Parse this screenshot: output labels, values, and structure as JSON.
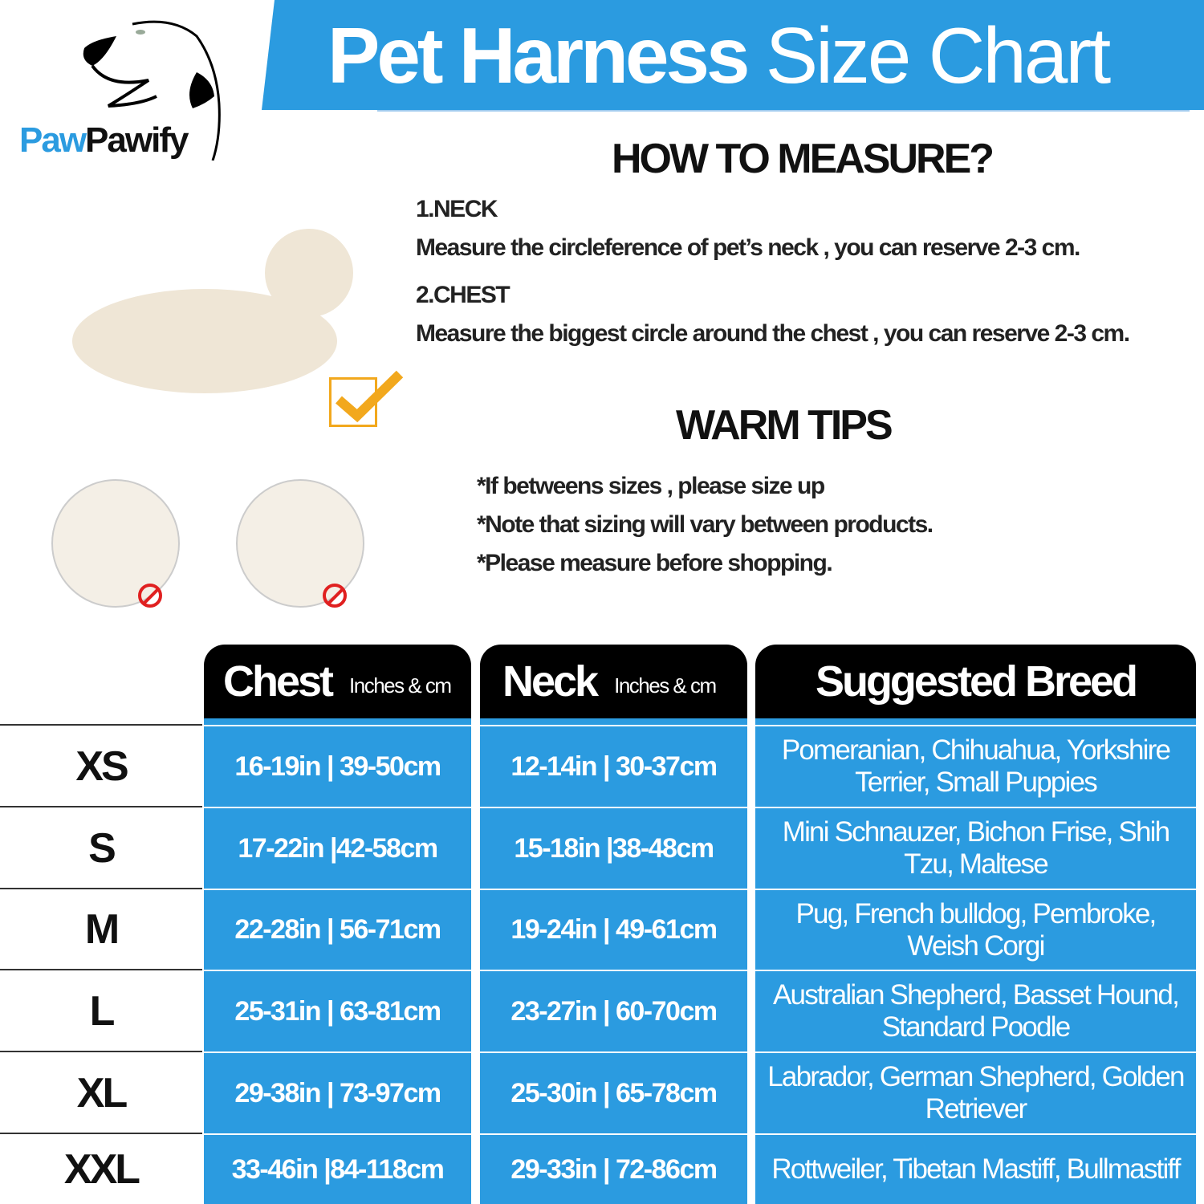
{
  "title": {
    "bold": "Pet Harness",
    "light": "Size Chart"
  },
  "logo": {
    "part1": "Paw",
    "part2": "Pawify"
  },
  "how_to_measure": {
    "heading": "HOW TO MEASURE?",
    "neck_label": "1.NECK",
    "neck_text": "Measure the circleference of pet’s neck , you can reserve 2-3 cm.",
    "chest_label": "2.CHEST",
    "chest_text": "Measure the biggest circle around the chest , you can reserve 2-3 cm."
  },
  "warm_tips": {
    "heading": "WARM TIPS",
    "tips": [
      "*If betweens sizes , please size up",
      "*Note that sizing will vary between products.",
      "*Please measure before shopping."
    ]
  },
  "table": {
    "headers": [
      {
        "title": "Chest",
        "unit": "Inches & cm"
      },
      {
        "title": "Neck",
        "unit": "Inches & cm"
      },
      {
        "title": "Suggested Breed"
      }
    ],
    "rows": [
      {
        "size": "XS",
        "chest": "16-19in | 39-50cm",
        "neck": "12-14in | 30-37cm",
        "breed": "Pomeranian, Chihuahua, Yorkshire Terrier, Small Puppies"
      },
      {
        "size": "S",
        "chest": "17-22in |42-58cm",
        "neck": "15-18in |38-48cm",
        "breed": "Mini Schnauzer, Bichon Frise, Shih Tzu, Maltese"
      },
      {
        "size": "M",
        "chest": "22-28in | 56-71cm",
        "neck": "19-24in | 49-61cm",
        "breed": "Pug, French bulldog, Pembroke, Weish Corgi"
      },
      {
        "size": "L",
        "chest": "25-31in | 63-81cm",
        "neck": "23-27in | 60-70cm",
        "breed": "Australian Shepherd, Basset Hound, Standard Poodle"
      },
      {
        "size": "XL",
        "chest": "29-38in | 73-97cm",
        "neck": "25-30in | 65-78cm",
        "breed": "Labrador, German Shepherd, Golden Retriever"
      },
      {
        "size": "XXL",
        "chest": "33-46in |84-118cm",
        "neck": "29-33in | 72-86cm",
        "breed": "Rottweiler, Tibetan Mastiff, Bullmastiff"
      }
    ]
  },
  "colors": {
    "accent": "#2b9be0",
    "header": "#000000",
    "check": "#f2a81d",
    "prohibit": "#e02020"
  },
  "icons": [
    "dog-logo-icon",
    "checkmark-icon",
    "prohibited-icon"
  ]
}
